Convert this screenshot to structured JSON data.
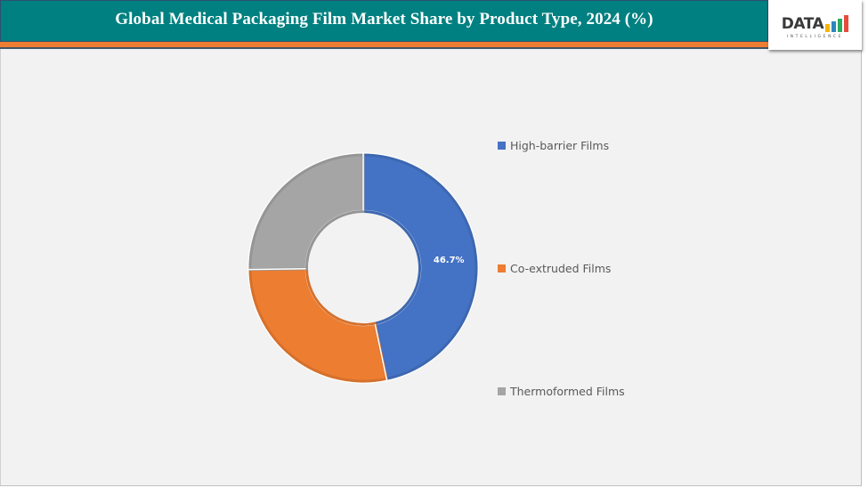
{
  "header": {
    "title": "Global Medical Packaging Film Market Share by Product Type, 2024 (%)",
    "colors": {
      "background": "#008080",
      "stripe": "#ed7d31",
      "text": "#ffffff"
    }
  },
  "logo": {
    "text": "DATA",
    "subtext": "INTELLIGENCE",
    "bar_colors": [
      "#f2b705",
      "#2e86c1",
      "#27ae60",
      "#e74c3c"
    ]
  },
  "chart_data": {
    "type": "pie",
    "variant": "donut",
    "title": "Global Medical Packaging Film Market Share by Product Type, 2024 (%)",
    "categories": [
      "High-barrier Films",
      "Co-extruded Films",
      "Thermoformed Films"
    ],
    "values": [
      46.7,
      28.1,
      25.2
    ],
    "colors": [
      "#4472c4",
      "#ed7d31",
      "#a5a5a5"
    ],
    "data_labels": [
      "46.7%",
      "",
      ""
    ],
    "start_angle_deg": 0,
    "direction": "clockwise",
    "hole_ratio": 0.5,
    "legend_position": "right",
    "xlabel": "",
    "ylabel": ""
  },
  "legend": {
    "items": [
      {
        "label": "High-barrier Films",
        "color": "#4472c4"
      },
      {
        "label": "Co-extruded Films",
        "color": "#ed7d31"
      },
      {
        "label": "Thermoformed Films",
        "color": "#a5a5a5"
      }
    ]
  }
}
